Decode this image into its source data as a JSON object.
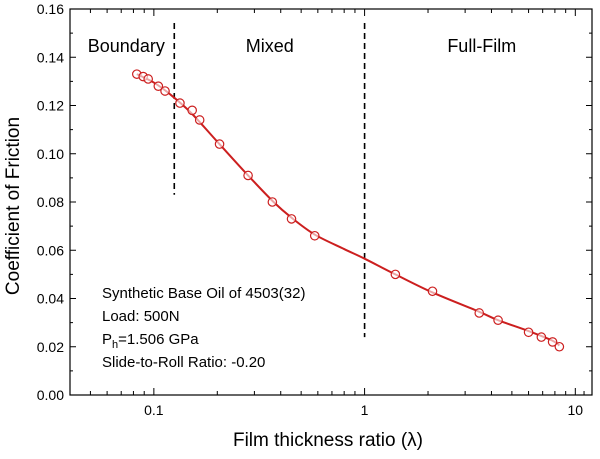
{
  "chart_data": {
    "type": "scatter",
    "xlabel": "Film thickness ratio (λ)",
    "ylabel": "Coefficient of Friction",
    "x_scale": "log",
    "xlim": [
      0.04,
      12
    ],
    "ylim": [
      0.0,
      0.16
    ],
    "x_ticks": [
      0.1,
      1,
      10
    ],
    "x_tick_labels": [
      "0.1",
      "1",
      "10"
    ],
    "y_ticks": [
      0.0,
      0.02,
      0.04,
      0.06,
      0.08,
      0.1,
      0.12,
      0.14,
      0.16
    ],
    "y_tick_labels": [
      "0.00",
      "0.02",
      "0.04",
      "0.06",
      "0.08",
      "0.10",
      "0.12",
      "0.14",
      "0.16"
    ],
    "grid": false,
    "colors": {
      "series": "#cc1f1f",
      "axis": "#000000"
    },
    "regions": [
      {
        "label": "Boundary",
        "x_start": 0.04,
        "x_end": 0.125
      },
      {
        "label": "Mixed",
        "x_start": 0.125,
        "x_end": 1.0
      },
      {
        "label": "Full-Film",
        "x_start": 1.0,
        "x_end": 12
      }
    ],
    "boundaries": [
      {
        "x": 0.125,
        "y_range": [
          0.083,
          0.16
        ]
      },
      {
        "x": 1.0,
        "y_range": [
          0.024,
          0.16
        ]
      }
    ],
    "series": [
      {
        "marker": "open-circle",
        "x": [
          0.083,
          0.089,
          0.094,
          0.105,
          0.113,
          0.133,
          0.152,
          0.165,
          0.205,
          0.28,
          0.365,
          0.45,
          0.58,
          1.4,
          2.1,
          3.5,
          4.3,
          6.0,
          6.9,
          7.8,
          8.4
        ],
        "y": [
          0.133,
          0.132,
          0.131,
          0.128,
          0.126,
          0.121,
          0.118,
          0.114,
          0.104,
          0.091,
          0.08,
          0.073,
          0.066,
          0.05,
          0.043,
          0.034,
          0.031,
          0.026,
          0.024,
          0.022,
          0.02
        ]
      }
    ],
    "fit": {
      "x": [
        0.083,
        0.1,
        0.12,
        0.15,
        0.2,
        0.28,
        0.37,
        0.45,
        0.58,
        0.8,
        1.0,
        1.4,
        2.1,
        3.5,
        4.3,
        6.0,
        7.8,
        8.4
      ],
      "y": [
        0.133,
        0.1295,
        0.1245,
        0.117,
        0.105,
        0.091,
        0.08,
        0.0735,
        0.0665,
        0.0605,
        0.0565,
        0.05,
        0.0425,
        0.0345,
        0.031,
        0.0265,
        0.0225,
        0.0205
      ]
    },
    "annotations": {
      "base_oil": "Synthetic Base Oil of 4503(32)",
      "load": "Load: 500N",
      "pressure_prefix": "P",
      "pressure_sub": "h",
      "pressure_value": "=1.506 GPa",
      "slide_roll": "Slide-to-Roll Ratio: -0.20"
    }
  }
}
